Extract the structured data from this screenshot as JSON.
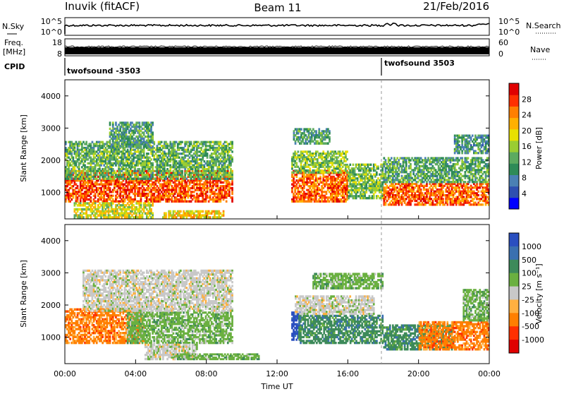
{
  "header": {
    "station": "Inuvik (fitACF)",
    "beam": "Beam 11",
    "date": "21/Feb/2016"
  },
  "strip_nsky": {
    "left_label": "N.Sky",
    "right_label": "N.Search",
    "y_ticks_left": [
      "10^5",
      "10^0"
    ],
    "y_ticks_right": [
      "10^5",
      "10^0"
    ]
  },
  "strip_freq": {
    "left_label_top": "Freq.",
    "left_label_bottom": "[MHz]",
    "right_label": "Nave",
    "y_ticks_left": [
      "18",
      "8"
    ],
    "y_ticks_right": [
      "60",
      "0"
    ]
  },
  "cpid": {
    "label": "CPID",
    "segments": [
      {
        "name": "twofsound -3503",
        "start_hour": 0
      },
      {
        "name": "twofsound 3503",
        "start_hour": 18
      }
    ]
  },
  "chart_data": [
    {
      "type": "heatmap",
      "panel": "power",
      "ylabel": "Slant Range [km]",
      "ylim": [
        180,
        4500
      ],
      "y_ticks": [
        1000,
        2000,
        3000,
        4000
      ],
      "x_range_hours": [
        0,
        24
      ],
      "colorbar": {
        "label": "Power [dB]",
        "range": [
          0,
          32
        ],
        "ticks": [
          "28",
          "24",
          "20",
          "16",
          "12",
          "8",
          "4"
        ],
        "tick_values": [
          28,
          24,
          20,
          16,
          12,
          8,
          4
        ],
        "colors": [
          "#0000ff",
          "#2e4fb0",
          "#4a80b4",
          "#2e8b57",
          "#5caa60",
          "#9acd32",
          "#e8e000",
          "#ffb000",
          "#ff7f00",
          "#ff3000",
          "#e00000"
        ]
      },
      "regions": [
        {
          "x": [
            0,
            9.5
          ],
          "y": [
            700,
            1700
          ],
          "level": 27
        },
        {
          "x": [
            0,
            9.5
          ],
          "y": [
            1400,
            2600
          ],
          "level": 13
        },
        {
          "x": [
            2.5,
            5
          ],
          "y": [
            2400,
            3200
          ],
          "level": 11
        },
        {
          "x": [
            0.5,
            5
          ],
          "y": [
            200,
            700
          ],
          "level": 18
        },
        {
          "x": [
            5.5,
            9
          ],
          "y": [
            200,
            450
          ],
          "level": 20
        },
        {
          "x": [
            12.8,
            16
          ],
          "y": [
            700,
            1700
          ],
          "level": 26
        },
        {
          "x": [
            12.8,
            16
          ],
          "y": [
            1600,
            2300
          ],
          "level": 15
        },
        {
          "x": [
            12.9,
            15
          ],
          "y": [
            2500,
            3000
          ],
          "level": 11
        },
        {
          "x": [
            16,
            18
          ],
          "y": [
            800,
            1900
          ],
          "level": 14
        },
        {
          "x": [
            18,
            24
          ],
          "y": [
            600,
            1300
          ],
          "level": 26
        },
        {
          "x": [
            18,
            24
          ],
          "y": [
            1300,
            2100
          ],
          "level": 12
        },
        {
          "x": [
            22,
            24
          ],
          "y": [
            2200,
            2800
          ],
          "level": 10
        }
      ]
    },
    {
      "type": "heatmap",
      "panel": "velocity",
      "ylabel": "Slant Range [km]",
      "ylim": [
        180,
        4500
      ],
      "y_ticks": [
        1000,
        2000,
        3000,
        4000
      ],
      "x_range_hours": [
        0,
        24
      ],
      "x_ticks": [
        "00:00",
        "04:00",
        "08:00",
        "12:00",
        "16:00",
        "20:00",
        "00:00"
      ],
      "xlabel": "Time UT",
      "colorbar": {
        "label": "Velocity [m s⁻¹]",
        "ticks": [
          "1000",
          "500",
          "100",
          "25",
          "-25",
          "-100",
          "-500",
          "-1000"
        ],
        "colors": [
          "#2a4fc0",
          "#3a70b0",
          "#3d8a5a",
          "#6ab040",
          "#c8c8c8",
          "#ffb040",
          "#ff7f00",
          "#ff3000",
          "#e00000"
        ]
      },
      "regions": [
        {
          "x": [
            0,
            4.5
          ],
          "y": [
            800,
            1900
          ],
          "cls": 6
        },
        {
          "x": [
            3.5,
            9.5
          ],
          "y": [
            800,
            1800
          ],
          "cls": 3
        },
        {
          "x": [
            1,
            9.5
          ],
          "y": [
            1800,
            3100
          ],
          "cls": 4
        },
        {
          "x": [
            4.5,
            7.5
          ],
          "y": [
            300,
            800
          ],
          "cls": 4
        },
        {
          "x": [
            6,
            11
          ],
          "y": [
            300,
            500
          ],
          "cls": 3
        },
        {
          "x": [
            12.8,
            13.3
          ],
          "y": [
            900,
            1800
          ],
          "cls": 0
        },
        {
          "x": [
            13.2,
            18
          ],
          "y": [
            800,
            1700
          ],
          "cls": 2
        },
        {
          "x": [
            13,
            17.5
          ],
          "y": [
            1700,
            2300
          ],
          "cls": 4
        },
        {
          "x": [
            14,
            18
          ],
          "y": [
            2500,
            3000
          ],
          "cls": 3
        },
        {
          "x": [
            18,
            22
          ],
          "y": [
            600,
            1400
          ],
          "cls": 2
        },
        {
          "x": [
            20,
            24
          ],
          "y": [
            600,
            1500
          ],
          "cls": 6
        },
        {
          "x": [
            22.5,
            24
          ],
          "y": [
            1500,
            2500
          ],
          "cls": 3
        }
      ]
    }
  ]
}
